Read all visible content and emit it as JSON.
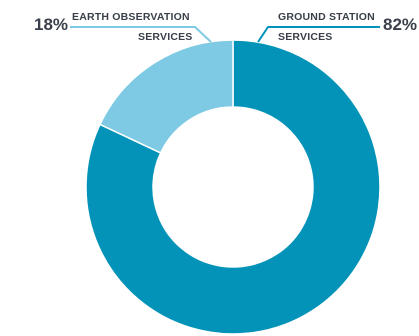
{
  "chart_data": {
    "type": "pie",
    "donut": true,
    "slices": [
      {
        "label_line1": "GROUND STATION",
        "label_line2": "SERVICES",
        "value": 82,
        "percent_label": "82%",
        "color": "#0393b8"
      },
      {
        "label_line1": "EARTH OBSERVATION",
        "label_line2": "SERVICES",
        "value": 18,
        "percent_label": "18%",
        "color": "#7ecae4"
      }
    ],
    "leader_colors": {
      "ground": "#0393b8",
      "earth": "#7ecae4"
    }
  }
}
